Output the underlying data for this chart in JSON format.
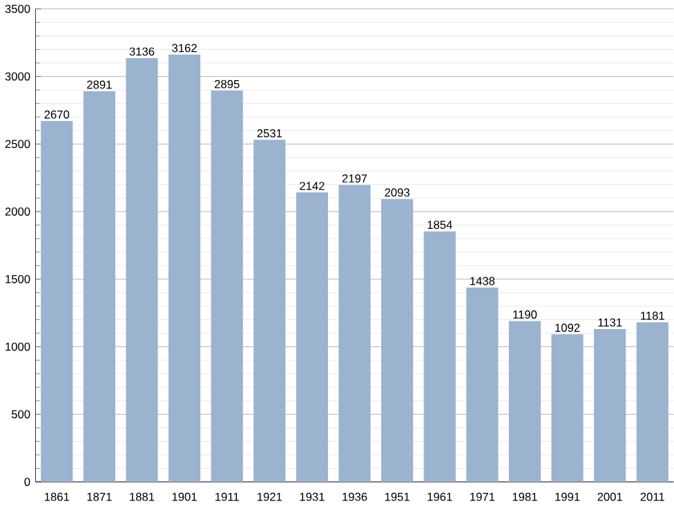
{
  "chart_data": {
    "type": "bar",
    "categories": [
      "1861",
      "1871",
      "1881",
      "1901",
      "1911",
      "1921",
      "1931",
      "1936",
      "1951",
      "1961",
      "1971",
      "1981",
      "1991",
      "2001",
      "2011"
    ],
    "values": [
      2670,
      2891,
      3136,
      3162,
      2895,
      2531,
      2142,
      2197,
      2093,
      1854,
      1438,
      1190,
      1092,
      1131,
      1181
    ],
    "color": "#9cb3cf",
    "ylim": [
      0,
      3500
    ],
    "yticks": [
      0,
      500,
      1000,
      1500,
      2000,
      2500,
      3000,
      3500
    ],
    "grid": "y",
    "data_labels": true
  }
}
